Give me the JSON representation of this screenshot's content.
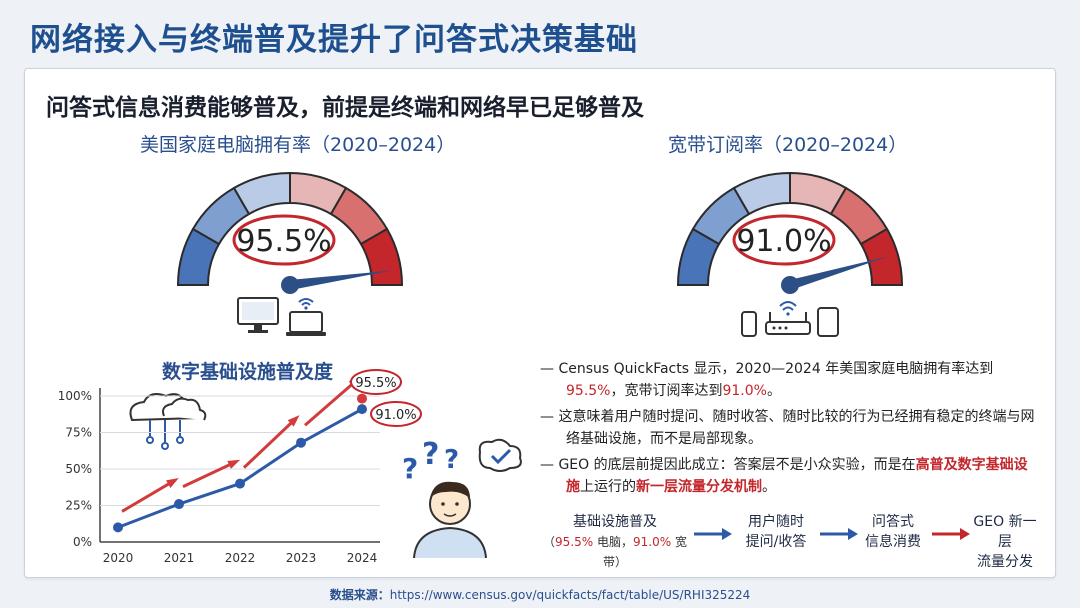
{
  "title": "网络接入与终端普及提升了问答式决策基础",
  "subtitle": "问答式信息消费能够普及，前提是终端和网络早已足够普及",
  "gauges": [
    {
      "title": "美国家庭电脑拥有率（2020–2024）",
      "value": 95.5,
      "label": "95.5%"
    },
    {
      "title": "宽带订阅率（2020–2024）",
      "value": 91.0,
      "label": "91.0%"
    }
  ],
  "chart_data": {
    "type": "line",
    "title": "数字基础设施普及度",
    "categories": [
      "2020",
      "2021",
      "2022",
      "2023",
      "2024"
    ],
    "yticks": [
      "0%",
      "25%",
      "50%",
      "75%",
      "100%"
    ],
    "ylim": [
      0,
      100
    ],
    "series": [
      {
        "values": [
          10,
          27,
          40,
          69,
          95.5
        ],
        "color": "#d23b3b"
      },
      {
        "values": [
          10,
          26,
          40,
          68,
          91.0
        ],
        "color": "#2c5aa8"
      }
    ],
    "annotations": [
      "95.5%",
      "91.0%"
    ]
  },
  "bullets": {
    "b1_a": "— Census QuickFacts 显示，2020—2024 年美国家庭电脑拥有率达到",
    "b1_v1": "95.5%",
    "b1_b": "，宽带订阅率达到",
    "b1_v2": "91.0%",
    "b1_c": "。",
    "b2": "— 这意味着用户随时提问、随时收答、随时比较的行为已经拥有稳定的终端与网络基础设施，而不是局部现象。",
    "b3_a": "— GEO 的底层前提因此成立：答案层不是小众实验，而是在",
    "b3_hl1": "高普及数字基础设施",
    "b3_b": "上运行的",
    "b3_hl2": "新一层流量分发机制",
    "b3_c": "。"
  },
  "flow": {
    "s1_line1": "基础设施普及",
    "s1_open": "（",
    "s1_v1": "95.5%",
    "s1_mid1": " 电脑，",
    "s1_v2": "91.0%",
    "s1_mid2": " 宽带）",
    "s2_line1": "用户随时",
    "s2_line2": "提问/收答",
    "s3_line1": "问答式",
    "s3_line2": "信息消费",
    "s4_line1": "GEO 新一层",
    "s4_line2": "流量分发"
  },
  "source": {
    "label": "数据来源：",
    "url": "https://www.census.gov/quickfacts/fact/table/US/RHI325224"
  },
  "colors": {
    "title": "#1e4f8f",
    "accent_red": "#c3262b",
    "accent_blue": "#2c5aa8"
  }
}
